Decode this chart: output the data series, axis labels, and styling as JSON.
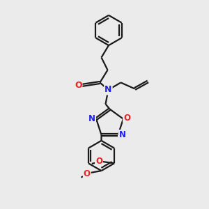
{
  "bg_color": "#ebebeb",
  "bond_color": "#1a1a1a",
  "nitrogen_color": "#2020ee",
  "oxygen_color": "#ee2020",
  "line_width": 1.6,
  "figsize": [
    3.0,
    3.0
  ],
  "dpi": 100,
  "xlim": [
    0,
    10
  ],
  "ylim": [
    0,
    10
  ]
}
